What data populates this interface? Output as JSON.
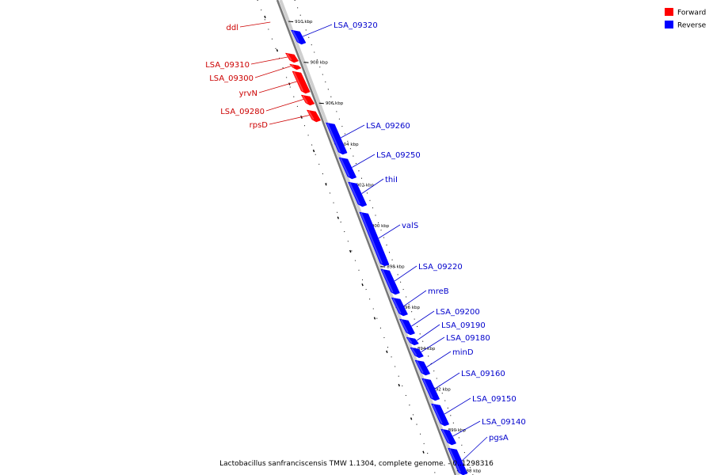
{
  "colors": {
    "forward": "#ff0000",
    "reverse": "#0000ff",
    "forward_label": "#cc0000",
    "reverse_label": "#0000cc",
    "backbone": "#888888"
  },
  "legend": {
    "forward": "Forward",
    "reverse": "Reverse"
  },
  "caption": "Lactobacillus sanfranciscensis TMW 1.1304, complete genome. - 0..1298316",
  "ticks": [
    {
      "kbp": 910,
      "label": "910 kbp"
    },
    {
      "kbp": 908,
      "label": "908 kbp"
    },
    {
      "kbp": 906,
      "label": "906 kbp"
    },
    {
      "kbp": 904,
      "label": "904 kbp"
    },
    {
      "kbp": 902,
      "label": "902 kbp"
    },
    {
      "kbp": 900,
      "label": "900 kbp"
    },
    {
      "kbp": 898,
      "label": "898 kbp"
    },
    {
      "kbp": 896,
      "label": "896 kbp"
    },
    {
      "kbp": 894,
      "label": "894 kbp"
    },
    {
      "kbp": 892,
      "label": "892 kbp"
    },
    {
      "kbp": 890,
      "label": "890 kbp"
    },
    {
      "kbp": 888,
      "label": "888 kbp"
    }
  ],
  "genes": [
    {
      "name": "ddl",
      "strand": "forward"
    },
    {
      "name": "LSA_09320",
      "strand": "reverse"
    },
    {
      "name": "LSA_09310",
      "strand": "forward"
    },
    {
      "name": "LSA_09300",
      "strand": "forward"
    },
    {
      "name": "yrvN",
      "strand": "forward"
    },
    {
      "name": "LSA_09280",
      "strand": "forward"
    },
    {
      "name": "rpsD",
      "strand": "forward"
    },
    {
      "name": "LSA_09260",
      "strand": "reverse"
    },
    {
      "name": "LSA_09250",
      "strand": "reverse"
    },
    {
      "name": "thiI",
      "strand": "reverse"
    },
    {
      "name": "valS",
      "strand": "reverse"
    },
    {
      "name": "LSA_09220",
      "strand": "reverse"
    },
    {
      "name": "mreB",
      "strand": "reverse"
    },
    {
      "name": "LSA_09200",
      "strand": "reverse"
    },
    {
      "name": "LSA_09190",
      "strand": "reverse"
    },
    {
      "name": "LSA_09180",
      "strand": "reverse"
    },
    {
      "name": "minD",
      "strand": "reverse"
    },
    {
      "name": "LSA_09160",
      "strand": "reverse"
    },
    {
      "name": "LSA_09150",
      "strand": "reverse"
    },
    {
      "name": "LSA_09140",
      "strand": "reverse"
    },
    {
      "name": "pgsA",
      "strand": "reverse"
    }
  ]
}
